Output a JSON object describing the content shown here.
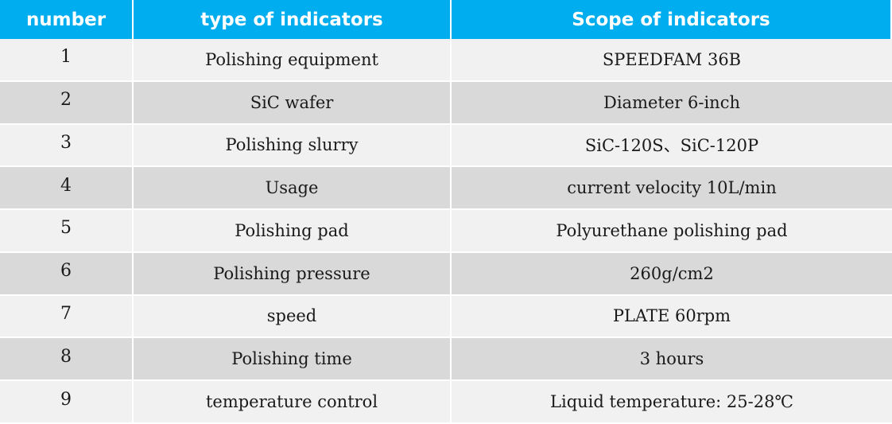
{
  "header": {
    "col_number": "number",
    "col_type": "type of indicators",
    "col_scope": "Scope of indicators"
  },
  "rows": [
    {
      "number": "1",
      "type": "Polishing equipment",
      "scope": "SPEEDFAM 36B"
    },
    {
      "number": "2",
      "type": "SiC wafer",
      "scope": "Diameter 6-inch"
    },
    {
      "number": "3",
      "type": "Polishing slurry",
      "scope": "SiC-120S、SiC-120P"
    },
    {
      "number": "4",
      "type": "Usage",
      "scope": "current velocity 10L/min"
    },
    {
      "number": "5",
      "type": "Polishing pad",
      "scope": "Polyurethane polishing pad"
    },
    {
      "number": "6",
      "type": "Polishing pressure",
      "scope": "260g/cm2"
    },
    {
      "number": "7",
      "type": "speed",
      "scope": "PLATE 60rpm"
    },
    {
      "number": "8",
      "type": "Polishing time",
      "scope": "3 hours"
    },
    {
      "number": "9",
      "type": "temperature control",
      "scope": "Liquid temperature: 25-28℃"
    }
  ],
  "colors": {
    "header_bg": "#00adee",
    "row_odd_bg": "#f1f1f1",
    "row_even_bg": "#d9d9d9"
  }
}
